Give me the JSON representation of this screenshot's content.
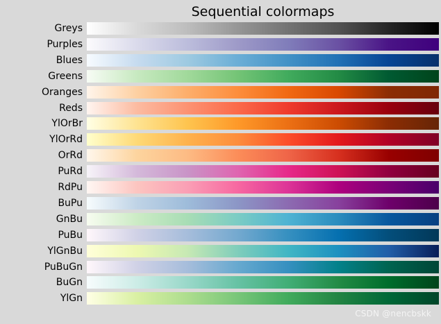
{
  "watermark": "CSDN @nencbskk",
  "chart_data": {
    "type": "heatmap",
    "title": "Sequential colormaps",
    "xlabel": "",
    "ylabel": "",
    "grid": false,
    "colormaps": [
      {
        "name": "Greys",
        "stops": [
          "#ffffff",
          "#d9d9d9",
          "#bdbdbd",
          "#969696",
          "#737373",
          "#525252",
          "#252525",
          "#000000"
        ]
      },
      {
        "name": "Purples",
        "stops": [
          "#fcfbfd",
          "#dadaeb",
          "#bcbddc",
          "#9e9ac8",
          "#807dba",
          "#6a51a3",
          "#4a1486",
          "#3f007d"
        ]
      },
      {
        "name": "Blues",
        "stops": [
          "#f7fbff",
          "#c6dbef",
          "#9ecae1",
          "#6baed6",
          "#4292c6",
          "#2171b5",
          "#084594",
          "#08306b"
        ]
      },
      {
        "name": "Greens",
        "stops": [
          "#f7fcf5",
          "#c7e9c0",
          "#a1d99b",
          "#74c476",
          "#41ab5d",
          "#238b45",
          "#005a32",
          "#00441b"
        ]
      },
      {
        "name": "Oranges",
        "stops": [
          "#fff5eb",
          "#fdd0a2",
          "#fdae6b",
          "#fd8d3c",
          "#f16913",
          "#d94801",
          "#8c2d04",
          "#7f2704"
        ]
      },
      {
        "name": "Reds",
        "stops": [
          "#fff5f0",
          "#fcbba1",
          "#fc9272",
          "#fb6a4a",
          "#ef3b2c",
          "#cb181d",
          "#99000d",
          "#67000d"
        ]
      },
      {
        "name": "YlOrBr",
        "stops": [
          "#ffffe5",
          "#fee391",
          "#fec44f",
          "#fe9929",
          "#ec7014",
          "#cc4c02",
          "#8c2d04",
          "#662506"
        ]
      },
      {
        "name": "YlOrRd",
        "stops": [
          "#ffffcc",
          "#fed976",
          "#feb24c",
          "#fd8d3c",
          "#fc4e2a",
          "#e31a1c",
          "#b10026",
          "#800026"
        ]
      },
      {
        "name": "OrRd",
        "stops": [
          "#fff7ec",
          "#fdd49e",
          "#fdbb84",
          "#fc8d59",
          "#ef6548",
          "#d7301f",
          "#990000",
          "#7f0000"
        ]
      },
      {
        "name": "PuRd",
        "stops": [
          "#f7f4f9",
          "#d4b9da",
          "#c994c7",
          "#df65b0",
          "#e7298a",
          "#ce1256",
          "#91003f",
          "#67001f"
        ]
      },
      {
        "name": "RdPu",
        "stops": [
          "#fff7f3",
          "#fcc5c0",
          "#fa9fb5",
          "#f768a1",
          "#dd3497",
          "#ae017e",
          "#7a0177",
          "#49006a"
        ]
      },
      {
        "name": "BuPu",
        "stops": [
          "#f7fcfd",
          "#bfd3e6",
          "#9ebcda",
          "#8c96c6",
          "#8c6bb1",
          "#88419d",
          "#6e016b",
          "#4d004b"
        ]
      },
      {
        "name": "GnBu",
        "stops": [
          "#f7fcf0",
          "#ccebc5",
          "#a8ddb5",
          "#7bccc4",
          "#4eb3d3",
          "#2b8cbe",
          "#08589e",
          "#084081"
        ]
      },
      {
        "name": "PuBu",
        "stops": [
          "#fff7fb",
          "#d0d1e6",
          "#a6bddb",
          "#74a9cf",
          "#3690c0",
          "#0570b0",
          "#034e7b",
          "#023858"
        ]
      },
      {
        "name": "YlGnBu",
        "stops": [
          "#ffffd9",
          "#edf8b1",
          "#c7e9b4",
          "#7fcdbb",
          "#41b6c4",
          "#1d91c0",
          "#225ea8",
          "#081d58"
        ]
      },
      {
        "name": "PuBuGn",
        "stops": [
          "#fff7fb",
          "#d0d1e6",
          "#a6bddb",
          "#67a9cf",
          "#3690c0",
          "#02818a",
          "#016450",
          "#014636"
        ]
      },
      {
        "name": "BuGn",
        "stops": [
          "#f7fcfd",
          "#ccece6",
          "#99d8c9",
          "#66c2a4",
          "#41ae76",
          "#238b45",
          "#006d2c",
          "#00441b"
        ]
      },
      {
        "name": "YlGn",
        "stops": [
          "#ffffe5",
          "#d9f0a3",
          "#addd8e",
          "#78c679",
          "#41ab5d",
          "#238443",
          "#006837",
          "#004529"
        ]
      }
    ]
  }
}
